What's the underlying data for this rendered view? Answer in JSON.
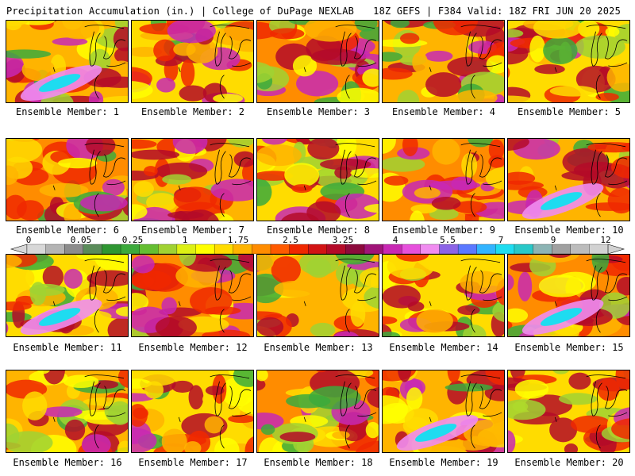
{
  "header": {
    "left": "Precipitation Accumulation (in.) | College of DuPage NEXLAB",
    "right": "18Z GEFS | F384 Valid: 18Z FRI JUN 20 2025"
  },
  "colorbar": {
    "labels": [
      "0",
      "0.05",
      "0.25",
      "1",
      "1.75",
      "2.5",
      "3.25",
      "4",
      "5.5",
      "7",
      "9",
      "12"
    ],
    "colors": [
      "#d8d8d8",
      "#b4b4b4",
      "#8c8c8c",
      "#5a8c5a",
      "#2e9632",
      "#3caa3c",
      "#64be32",
      "#a0d232",
      "#dcf014",
      "#ffff00",
      "#ffdc00",
      "#ffb400",
      "#ff8c00",
      "#ff5a00",
      "#f02800",
      "#d21414",
      "#b40a28",
      "#8c0a3c",
      "#a01478",
      "#c828b4",
      "#e650dc",
      "#f08cf0",
      "#8c64e6",
      "#5a78ff",
      "#32b4ff",
      "#1edcf0",
      "#28c8c8",
      "#8cb4b4",
      "#a0a0a0",
      "#bcbcbc",
      "#d2d2d2"
    ]
  },
  "members": [
    {
      "caption": "Ensemble Member: 1"
    },
    {
      "caption": "Ensemble Member: 2"
    },
    {
      "caption": "Ensemble Member: 3"
    },
    {
      "caption": "Ensemble Member: 4"
    },
    {
      "caption": "Ensemble Member: 5"
    },
    {
      "caption": "Ensemble Member: 6"
    },
    {
      "caption": "Ensemble Member: 7"
    },
    {
      "caption": "Ensemble Member: 8"
    },
    {
      "caption": "Ensemble Member: 9"
    },
    {
      "caption": "Ensemble Member: 10"
    },
    {
      "caption": "Ensemble Member: 11"
    },
    {
      "caption": "Ensemble Member: 12"
    },
    {
      "caption": "Ensemble Member: 13"
    },
    {
      "caption": "Ensemble Member: 14"
    },
    {
      "caption": "Ensemble Member: 15"
    },
    {
      "caption": "Ensemble Member: 16"
    },
    {
      "caption": "Ensemble Member: 17"
    },
    {
      "caption": "Ensemble Member: 18"
    },
    {
      "caption": "Ensemble Member: 19"
    },
    {
      "caption": "Ensemble Member: 20"
    }
  ]
}
